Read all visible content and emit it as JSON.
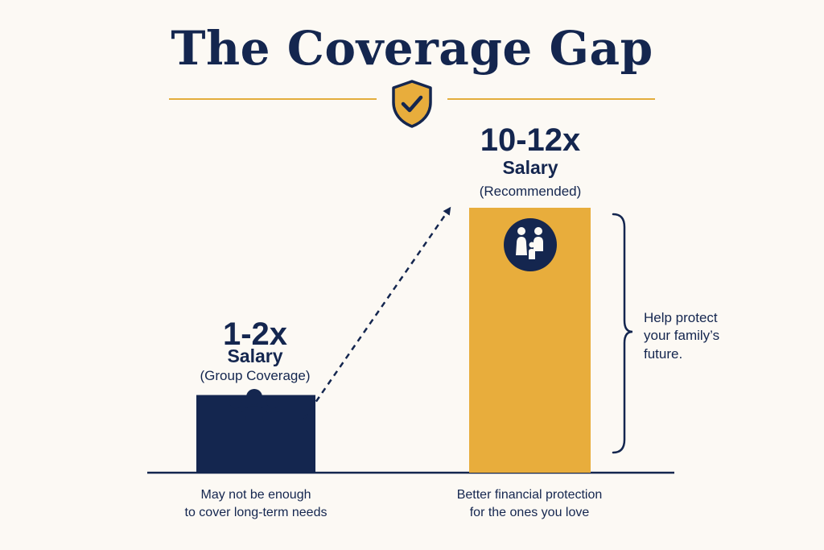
{
  "title": "The Coverage Gap",
  "icons": {
    "header": "shield-check-icon",
    "low": "group-people-icon",
    "high": "family-icon"
  },
  "colors": {
    "navy": "#14264f",
    "gold": "#e8ad3c",
    "background": "#fcf9f4"
  },
  "chart_data": {
    "type": "bar",
    "categories": [
      "Group Coverage",
      "Recommended"
    ],
    "value_labels": [
      "1-2x",
      "10-12x"
    ],
    "unit_labels": [
      "Salary",
      "Salary"
    ],
    "category_labels": [
      "(Group Coverage)",
      "(Recommended)"
    ],
    "values": [
      1.5,
      11
    ],
    "value_range_low": [
      1,
      10
    ],
    "value_range_high": [
      2,
      12
    ],
    "ylim": [
      0,
      12
    ],
    "bar_colors": [
      "#14264f",
      "#e8ad3c"
    ],
    "xlabels": [
      [
        "May not be enough",
        "to cover long-term needs"
      ],
      [
        "Better financial protection",
        "for the ones you love"
      ]
    ],
    "annotation": [
      "Help protect",
      "your family’s",
      "future."
    ],
    "grid": false,
    "legend": "none"
  }
}
